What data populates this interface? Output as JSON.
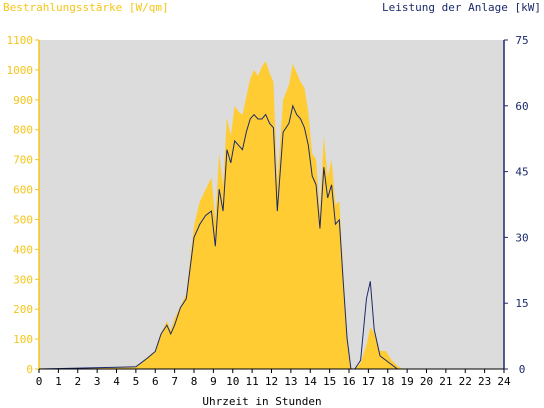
{
  "chart_data": {
    "type": "area",
    "title_left": "Bestrahlungsstärke [W/qm]",
    "title_right": "Leistung der Anlage [kW]",
    "xlabel": "Uhrzeit in Stunden",
    "xlim": [
      0,
      24
    ],
    "x_ticks": [
      "0",
      "1",
      "2",
      "3",
      "4",
      "5",
      "6",
      "7",
      "8",
      "9",
      "10",
      "11",
      "12",
      "13",
      "14",
      "15",
      "16",
      "17",
      "18",
      "19",
      "20",
      "21",
      "22",
      "23",
      "24"
    ],
    "y_left_lim": [
      0,
      1100
    ],
    "y_left_ticks": [
      "0",
      "100",
      "200",
      "300",
      "400",
      "500",
      "600",
      "700",
      "800",
      "900",
      "1000",
      "1100"
    ],
    "y_right_lim": [
      0,
      75
    ],
    "y_right_ticks": [
      "0",
      "15",
      "30",
      "45",
      "60",
      "75"
    ],
    "colors": {
      "irradiance": "#ffcc33",
      "power": "#1c2a6b",
      "plot_bg": "#dcdcdc",
      "left_axis": "#f5c518",
      "right_axis": "#1c2a6b"
    },
    "series": [
      {
        "role": "irradiance",
        "axis": "left",
        "x": [
          0,
          5,
          5.3,
          5.6,
          6.0,
          6.3,
          6.6,
          6.8,
          7.0,
          7.3,
          7.6,
          8.0,
          8.3,
          8.6,
          8.9,
          9.1,
          9.3,
          9.5,
          9.7,
          9.9,
          10.1,
          10.3,
          10.5,
          10.7,
          10.9,
          11.1,
          11.3,
          11.5,
          11.7,
          11.9,
          12.1,
          12.3,
          12.6,
          12.9,
          13.1,
          13.3,
          13.5,
          13.7,
          13.9,
          14.1,
          14.3,
          14.5,
          14.7,
          14.9,
          15.1,
          15.3,
          15.5,
          15.7,
          15.9,
          16.1,
          16.3,
          16.6,
          16.9,
          17.1,
          17.3,
          17.6,
          17.9,
          18.2,
          18.5,
          18.8,
          19.0,
          24
        ],
        "y": [
          0,
          5,
          20,
          40,
          60,
          120,
          160,
          130,
          170,
          210,
          250,
          480,
          560,
          600,
          640,
          500,
          720,
          610,
          840,
          780,
          880,
          860,
          850,
          910,
          970,
          1000,
          980,
          1010,
          1030,
          990,
          960,
          620,
          900,
          950,
          1020,
          990,
          960,
          940,
          860,
          720,
          700,
          520,
          780,
          640,
          700,
          550,
          560,
          330,
          120,
          0,
          0,
          20,
          80,
          140,
          120,
          60,
          60,
          30,
          10,
          0,
          0,
          0
        ]
      },
      {
        "role": "power",
        "axis": "right",
        "x": [
          0,
          5,
          5.3,
          5.6,
          6.0,
          6.3,
          6.6,
          6.8,
          7.0,
          7.3,
          7.6,
          8.0,
          8.3,
          8.6,
          8.9,
          9.1,
          9.3,
          9.5,
          9.7,
          9.9,
          10.1,
          10.3,
          10.5,
          10.7,
          10.9,
          11.1,
          11.3,
          11.5,
          11.7,
          11.9,
          12.1,
          12.3,
          12.6,
          12.9,
          13.1,
          13.3,
          13.5,
          13.7,
          13.9,
          14.1,
          14.3,
          14.5,
          14.7,
          14.9,
          15.1,
          15.3,
          15.5,
          15.7,
          15.9,
          16.1,
          16.3,
          16.6,
          16.9,
          17.1,
          17.3,
          17.6,
          17.9,
          18.2,
          18.5,
          18.8,
          19.0,
          24
        ],
        "y": [
          0,
          0.5,
          1.5,
          2.5,
          4,
          8,
          10,
          8,
          10,
          14,
          16,
          30,
          33,
          35,
          36,
          28,
          41,
          36,
          50,
          47,
          52,
          51,
          50,
          54,
          57,
          58,
          57,
          57,
          58,
          56,
          55,
          36,
          54,
          56,
          60,
          58,
          57,
          55,
          51,
          44,
          42,
          32,
          46,
          39,
          42,
          33,
          34,
          20,
          7,
          0,
          0,
          2,
          16,
          20,
          9,
          3,
          2,
          1,
          0,
          0,
          0,
          0
        ]
      }
    ]
  }
}
